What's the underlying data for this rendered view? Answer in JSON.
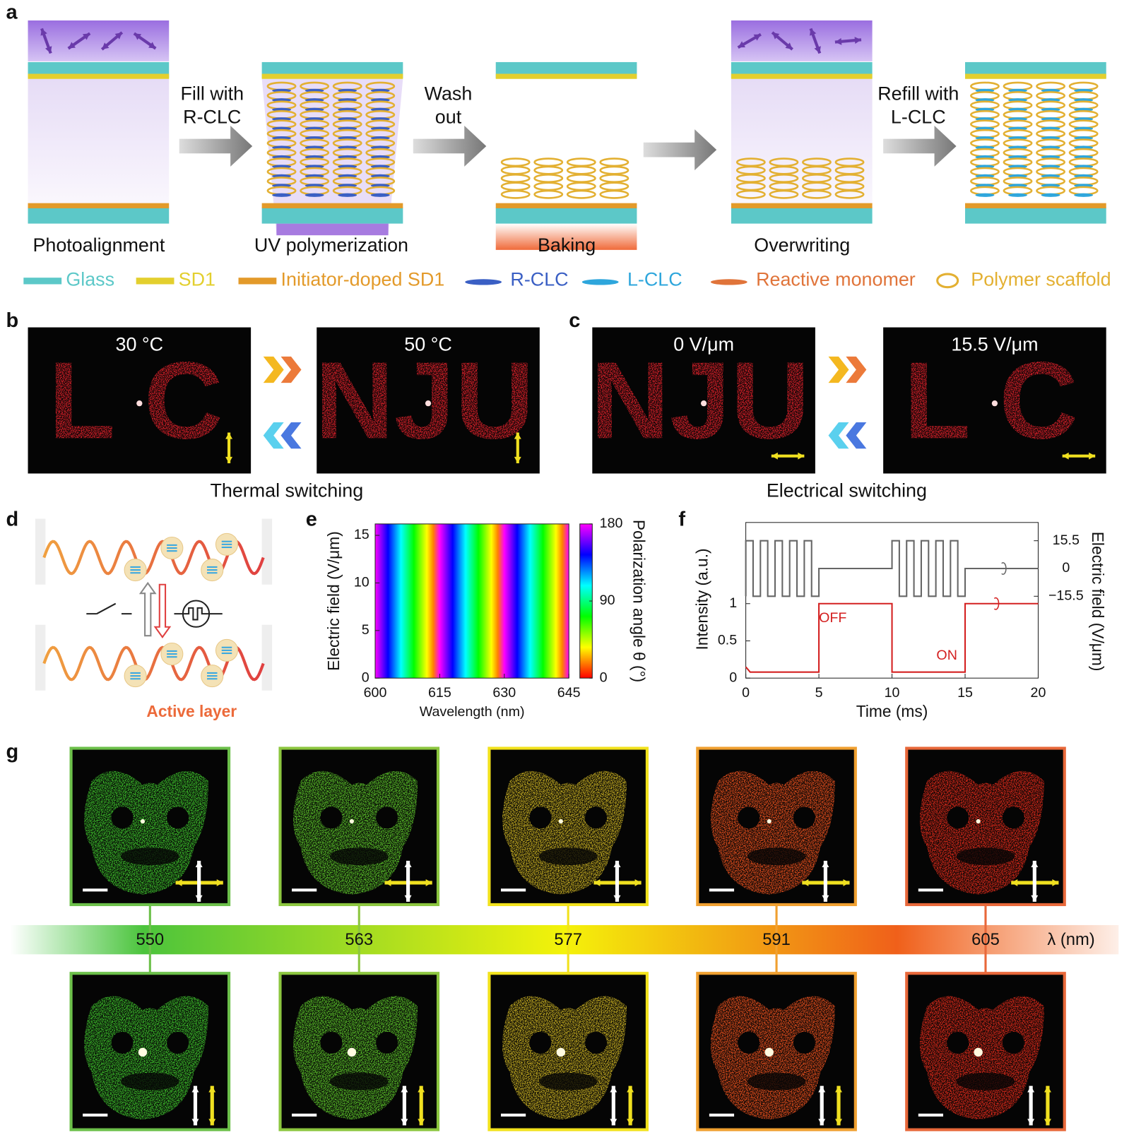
{
  "figure": {
    "a": {
      "label": "a",
      "steps": [
        "Photoalignment",
        "UV polymerization",
        "Baking",
        "Overwriting"
      ],
      "arrows": [
        [
          "Fill with",
          "R-CLC"
        ],
        [
          "Wash",
          "out"
        ],
        [
          "Refill with",
          "L-CLC"
        ]
      ],
      "legend": [
        {
          "name": "Glass",
          "color": "#5cc8c8"
        },
        {
          "name": "SD1",
          "color": "#e3cf2e"
        },
        {
          "name": "Initiator-doped SD1",
          "color": "#e39a2a"
        },
        {
          "name": "R-CLC",
          "color": "#3a5fc4"
        },
        {
          "name": "L-CLC",
          "color": "#2ea6dc"
        },
        {
          "name": "Reactive monomer",
          "color": "#e0743a"
        },
        {
          "name": "Polymer scaffold",
          "color": "#e3b032"
        }
      ]
    },
    "b": {
      "label": "b",
      "images": [
        {
          "caption": "30 °C",
          "pattern": "L C"
        },
        {
          "caption": "50 °C",
          "pattern": "NJU"
        }
      ],
      "title": "Thermal switching"
    },
    "c": {
      "label": "c",
      "images": [
        {
          "caption": "0 V/μm",
          "pattern": "NJU"
        },
        {
          "caption": "15.5 V/μm",
          "pattern": "L C"
        }
      ],
      "title": "Electrical switching"
    },
    "d": {
      "label": "d",
      "caption": "Active layer"
    },
    "g": {
      "label": "g",
      "axis_label": "λ (nm)",
      "columns": [
        {
          "wavelength": 550,
          "frame": "#6cc04a",
          "color": "#3ec22c"
        },
        {
          "wavelength": 563,
          "frame": "#8cc63f",
          "color": "#5cc42a"
        },
        {
          "wavelength": 577,
          "frame": "#f2e21c",
          "color": "#c9b022"
        },
        {
          "wavelength": 591,
          "frame": "#f0a030",
          "color": "#e8501e"
        },
        {
          "wavelength": 605,
          "frame": "#e8683a",
          "color": "#e02a1a"
        }
      ]
    }
  },
  "chart_data": [
    {
      "type": "heatmap",
      "label": "e",
      "xlabel": "Wavelength (nm)",
      "ylabel": "Electric field (V/μm)",
      "colorbar_label": "Polarization angle θ (°)",
      "colormap": "hsv",
      "xlim": [
        600,
        645
      ],
      "xticks": [
        600,
        615,
        630,
        645
      ],
      "ylim": [
        0,
        16.2
      ],
      "yticks": [
        0,
        5,
        10,
        15
      ],
      "zlim": [
        0,
        180
      ],
      "zticks": [
        0,
        90,
        180
      ]
    },
    {
      "type": "line",
      "label": "f",
      "xlabel": "Time (ms)",
      "ylabel": "Intensity (a.u.)",
      "y2label": "Electric field (V/μm)",
      "xlim": [
        0,
        20
      ],
      "xticks": [
        0,
        5,
        10,
        15,
        20
      ],
      "ylim": [
        0,
        2.09
      ],
      "yticks": [
        0,
        0.5,
        1
      ],
      "y2lim": [
        -61.2,
        25.7
      ],
      "y2ticks": [
        {
          "value": -15.5,
          "label": "−15.5"
        },
        0,
        15.5
      ],
      "annotations": [
        {
          "text": "OFF",
          "x": 4.7,
          "y": 0.8
        },
        {
          "text": "ON",
          "x": 12.5,
          "y": 0.3
        }
      ],
      "series": [
        {
          "name": "Intensity",
          "color": "#d42020",
          "x": [
            0,
            0.3,
            5,
            5,
            10,
            10,
            15,
            15,
            20
          ],
          "values": [
            0.15,
            0.08,
            0.08,
            1,
            1,
            0.08,
            0.08,
            1,
            1
          ]
        },
        {
          "name": "Electric field",
          "color": "#666666",
          "axis": "y2",
          "x": [
            0,
            0,
            0.5,
            0.5,
            1,
            1,
            1.5,
            1.5,
            2,
            2,
            2.5,
            2.5,
            3,
            3,
            3.5,
            3.5,
            4,
            4,
            4.5,
            4.5,
            5,
            5,
            10,
            10,
            10.5,
            10.5,
            11,
            11,
            11.5,
            11.5,
            12,
            12,
            12.5,
            12.5,
            13,
            13,
            13.5,
            13.5,
            14,
            14,
            14.5,
            14.5,
            15,
            15,
            20
          ],
          "values": [
            -15.5,
            15.5,
            15.5,
            -15.5,
            -15.5,
            15.5,
            15.5,
            -15.5,
            -15.5,
            15.5,
            15.5,
            -15.5,
            -15.5,
            15.5,
            15.5,
            -15.5,
            -15.5,
            15.5,
            15.5,
            -15.5,
            -15.5,
            0,
            0,
            15.5,
            15.5,
            -15.5,
            -15.5,
            15.5,
            15.5,
            -15.5,
            -15.5,
            15.5,
            15.5,
            -15.5,
            -15.5,
            15.5,
            15.5,
            -15.5,
            -15.5,
            15.5,
            15.5,
            -15.5,
            -15.5,
            0,
            0
          ]
        }
      ]
    }
  ]
}
